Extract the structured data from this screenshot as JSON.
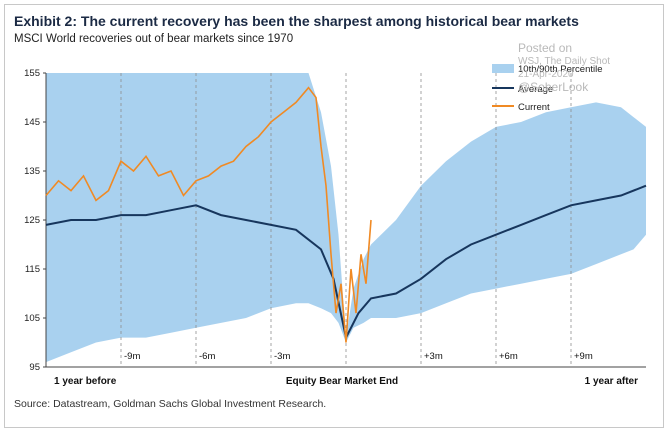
{
  "header": {
    "title": "Exhibit 2: The current recovery has been the sharpest among historical bear markets",
    "subtitle": "MSCI World recoveries out of bear markets since 1970"
  },
  "watermark": {
    "line1": "Posted on",
    "line2": "WSJ, The Daily Shot",
    "line3": "21-Apr-2020",
    "line4": "@SoberLook"
  },
  "footer": {
    "source": "Source: Datastream, Goldman Sachs Global Investment Research."
  },
  "chart_data": {
    "type": "area",
    "title": "Exhibit 2: The current recovery has been the sharpest among historical bear markets",
    "subtitle": "MSCI World recoveries out of bear markets since 1970",
    "x_range_months": [
      -12,
      12
    ],
    "ylim": [
      95,
      155
    ],
    "y_ticks": [
      95,
      105,
      115,
      125,
      135,
      145,
      155
    ],
    "x_gridlines_months": [
      -9,
      -6,
      -3,
      3,
      6,
      9
    ],
    "x_tick_labels": [
      {
        "x": -9,
        "label": "-9m"
      },
      {
        "x": -6,
        "label": "-6m"
      },
      {
        "x": -3,
        "label": "-3m"
      },
      {
        "x": 3,
        "label": "+3m"
      },
      {
        "x": 6,
        "label": "+6m"
      },
      {
        "x": 9,
        "label": "+9m"
      }
    ],
    "bottom_labels": [
      {
        "x": -12,
        "label": "1 year before"
      },
      {
        "x": 0,
        "label": "Equity  Bear Market End"
      },
      {
        "x": 12,
        "label": "1 year after"
      }
    ],
    "legend_position": "top-right",
    "colors": {
      "band": "#a9d1ef",
      "average": "#17365d",
      "current": "#f08a24",
      "grid": "#8f8f8f"
    },
    "series": [
      {
        "name": "10th/90th Percentile",
        "style": "band",
        "x": [
          -12,
          -11,
          -10,
          -9,
          -8,
          -7,
          -6,
          -5,
          -4,
          -3,
          -2,
          -1.5,
          -1,
          -0.6,
          -0.3,
          0,
          0.3,
          0.7,
          1,
          2,
          3,
          4,
          5,
          6,
          7,
          8,
          9,
          10,
          11,
          11.5,
          12
        ],
        "lower": [
          96,
          98,
          100,
          101,
          101,
          102,
          103,
          104,
          105,
          107,
          108,
          108,
          107,
          106,
          104,
          100,
          103,
          104,
          105,
          105,
          106,
          108,
          110,
          111,
          112,
          113,
          114,
          116,
          118,
          119,
          122
        ],
        "upper": [
          155,
          155,
          155,
          155,
          155,
          155,
          155,
          155,
          155,
          155,
          155,
          155,
          147,
          136,
          122,
          101,
          111,
          117,
          120,
          125,
          132,
          137,
          141,
          144,
          145,
          147,
          148,
          149,
          148,
          146,
          144
        ]
      },
      {
        "name": "Average",
        "style": "line",
        "x": [
          -12,
          -11,
          -10,
          -9,
          -8,
          -7,
          -6,
          -5,
          -4,
          -3,
          -2,
          -1,
          -0.5,
          0,
          0.5,
          1,
          2,
          3,
          4,
          5,
          6,
          7,
          8,
          9,
          10,
          11,
          12
        ],
        "values": [
          124,
          125,
          125,
          126,
          126,
          127,
          128,
          126,
          125,
          124,
          123,
          119,
          113,
          101,
          106,
          109,
          110,
          113,
          117,
          120,
          122,
          124,
          126,
          128,
          129,
          130,
          132
        ]
      },
      {
        "name": "Current",
        "style": "line",
        "x": [
          -12,
          -11.5,
          -11,
          -10.5,
          -10,
          -9.5,
          -9,
          -8.5,
          -8,
          -7.5,
          -7,
          -6.5,
          -6,
          -5.5,
          -5,
          -4.5,
          -4,
          -3.5,
          -3,
          -2.5,
          -2,
          -1.5,
          -1.2,
          -1,
          -0.8,
          -0.6,
          -0.4,
          -0.2,
          0,
          0.2,
          0.4,
          0.6,
          0.8,
          1
        ],
        "values": [
          130,
          133,
          131,
          134,
          129,
          131,
          137,
          135,
          138,
          134,
          135,
          130,
          133,
          134,
          136,
          137,
          140,
          142,
          145,
          147,
          149,
          152,
          150,
          140,
          132,
          118,
          106,
          112,
          100,
          115,
          106,
          118,
          112,
          125
        ]
      }
    ]
  }
}
